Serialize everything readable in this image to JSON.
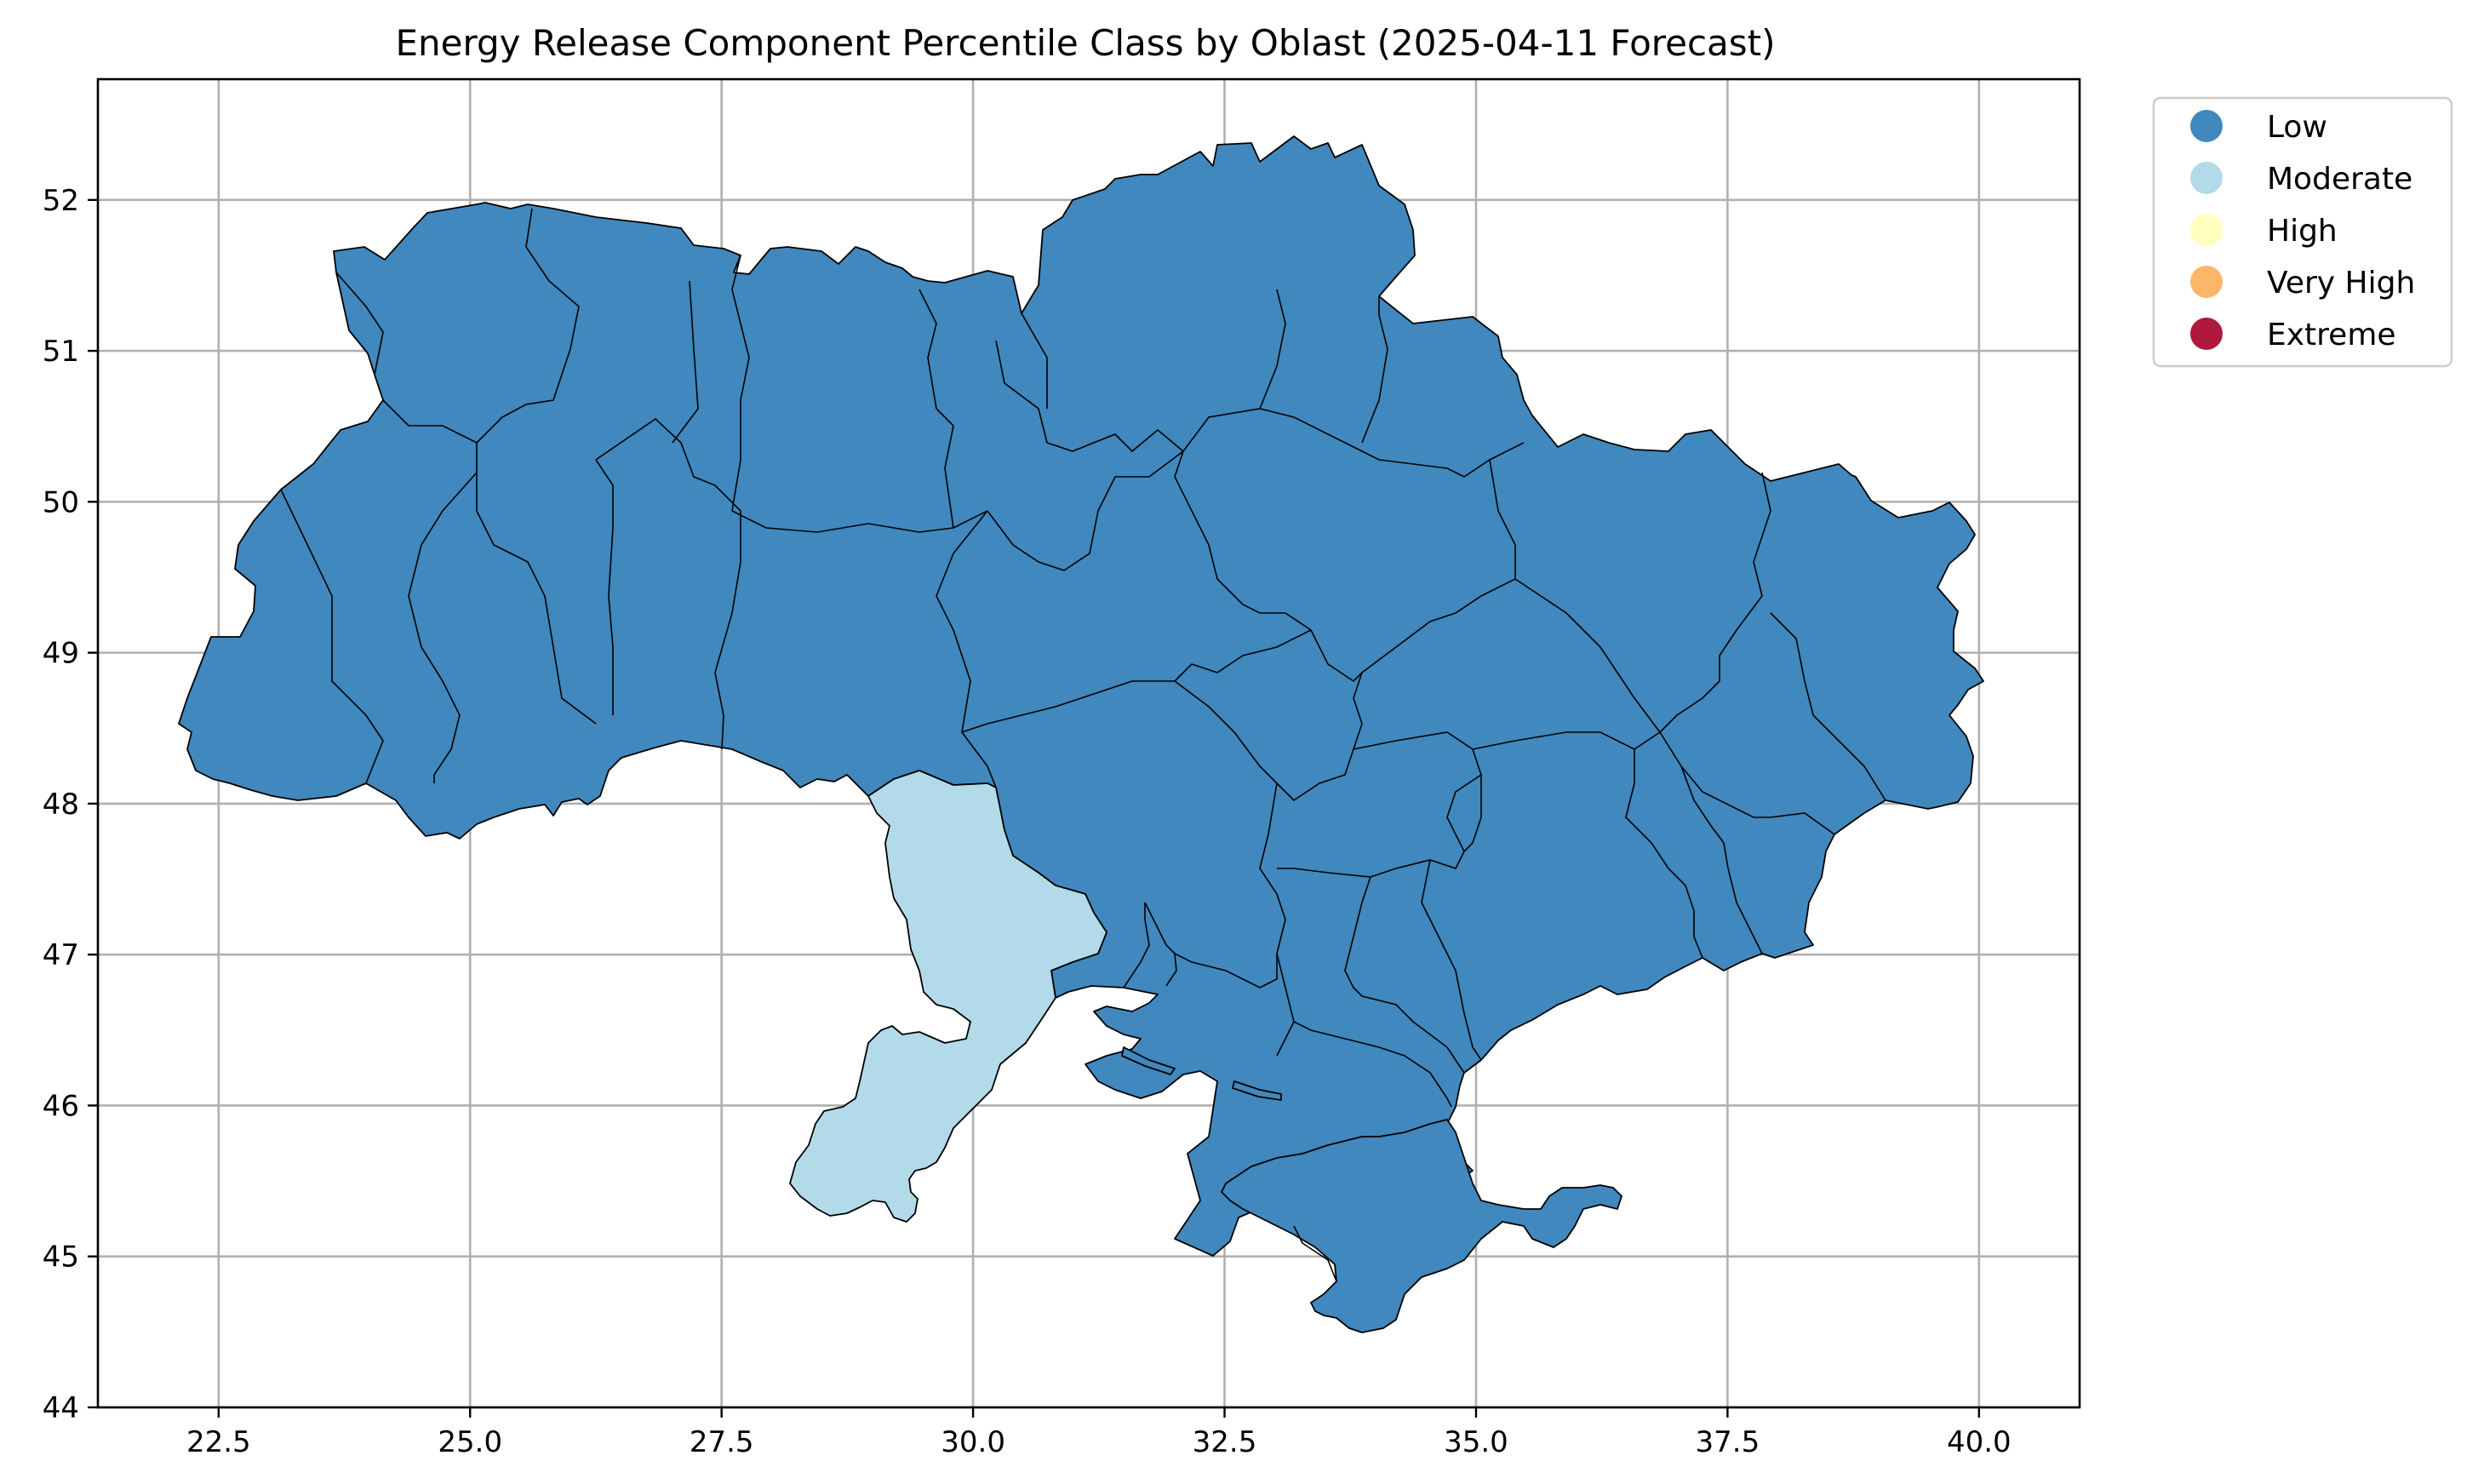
{
  "title": "Energy Release Component Percentile Class by Oblast (2025-04-11 Forecast)",
  "x_ticks": [
    "22.5",
    "25.0",
    "27.5",
    "30.0",
    "32.5",
    "35.0",
    "37.5",
    "40.0"
  ],
  "y_ticks": [
    "44",
    "45",
    "46",
    "47",
    "48",
    "49",
    "50",
    "51",
    "52"
  ],
  "x_tick_values": [
    22.5,
    25.0,
    27.5,
    30.0,
    32.5,
    35.0,
    37.5,
    40.0
  ],
  "y_tick_values": [
    44,
    45,
    46,
    47,
    48,
    49,
    50,
    51,
    52
  ],
  "xlim": [
    21.3,
    41.0
  ],
  "ylim": [
    44.0,
    52.8
  ],
  "legend": {
    "placement": "upper-right-outside",
    "entries": [
      {
        "label": "Low",
        "color": "#4088be"
      },
      {
        "label": "Moderate",
        "color": "#b2dae9"
      },
      {
        "label": "High",
        "color": "#ffffbf"
      },
      {
        "label": "Very High",
        "color": "#fdb56a"
      },
      {
        "label": "Extreme",
        "color": "#b0183e"
      }
    ]
  },
  "grid": true,
  "map_data": {
    "class_by_region": {
      "Odesa oblast": "Moderate",
      "all other oblasts": "Low"
    }
  }
}
